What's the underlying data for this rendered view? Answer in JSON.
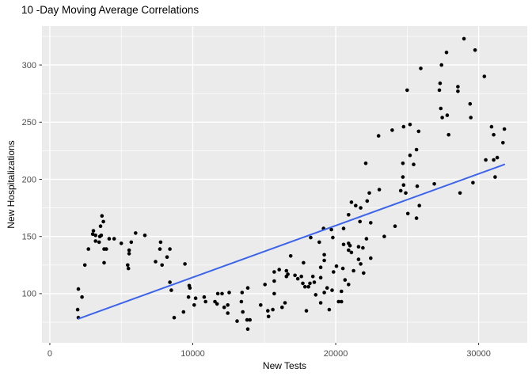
{
  "chart_data": {
    "type": "scatter",
    "title": "10 -Day Moving Average Correlations",
    "xlabel": "New Tests",
    "ylabel": "New Hospitalizations",
    "x_ticks": [
      0,
      10000,
      20000,
      30000
    ],
    "x_tick_labels": [
      "0",
      "10000",
      "20000",
      "30000"
    ],
    "y_ticks": [
      100,
      150,
      200,
      250,
      300
    ],
    "y_tick_labels": [
      "100",
      "150",
      "200",
      "250",
      "300"
    ],
    "x_minor": [
      5000,
      15000,
      25000
    ],
    "y_minor": [
      75,
      125,
      175,
      225,
      275,
      325
    ],
    "xlim": [
      -550,
      33400
    ],
    "ylim": [
      57,
      334
    ],
    "grid": "white major and minor gridlines on gray panel",
    "legend": "none",
    "colors": {
      "background": "#FFFFFF",
      "panel_bg": "#EBEBEB",
      "grid": "#FFFFFF",
      "point": "#000000",
      "trend": "#3C64EB",
      "tick_label": "#4D4D4D",
      "tick_mark": "#333333",
      "title": "#000000"
    },
    "trend_line": {
      "x1": 2000,
      "y1": 78,
      "x2": 31800,
      "y2": 213
    },
    "points": [
      [
        1950,
        86
      ],
      [
        2000,
        79
      ],
      [
        2000,
        104
      ],
      [
        2250,
        97
      ],
      [
        2450,
        125
      ],
      [
        2700,
        139
      ],
      [
        3000,
        152
      ],
      [
        3050,
        155
      ],
      [
        3200,
        151
      ],
      [
        3200,
        146
      ],
      [
        3450,
        145
      ],
      [
        3500,
        150
      ],
      [
        3550,
        159
      ],
      [
        3600,
        151
      ],
      [
        3650,
        168
      ],
      [
        3750,
        163
      ],
      [
        3800,
        139
      ],
      [
        3800,
        127
      ],
      [
        3950,
        139
      ],
      [
        4150,
        148
      ],
      [
        4500,
        148
      ],
      [
        5000,
        144
      ],
      [
        5450,
        125
      ],
      [
        5500,
        122
      ],
      [
        5550,
        138
      ],
      [
        5550,
        135
      ],
      [
        5700,
        145
      ],
      [
        6000,
        153
      ],
      [
        6650,
        151
      ],
      [
        7400,
        128
      ],
      [
        7700,
        139
      ],
      [
        7750,
        145
      ],
      [
        7850,
        125
      ],
      [
        8200,
        132
      ],
      [
        8400,
        139
      ],
      [
        8400,
        110
      ],
      [
        8500,
        103
      ],
      [
        8700,
        79
      ],
      [
        9350,
        84
      ],
      [
        9450,
        126
      ],
      [
        9700,
        97
      ],
      [
        9750,
        107
      ],
      [
        9800,
        105
      ],
      [
        10100,
        90
      ],
      [
        10200,
        96
      ],
      [
        10800,
        97
      ],
      [
        10900,
        93
      ],
      [
        11550,
        93
      ],
      [
        11700,
        91
      ],
      [
        11750,
        100
      ],
      [
        12050,
        100
      ],
      [
        12200,
        88
      ],
      [
        12450,
        90
      ],
      [
        12450,
        83
      ],
      [
        12550,
        101
      ],
      [
        13100,
        76
      ],
      [
        13400,
        93
      ],
      [
        13450,
        101
      ],
      [
        13500,
        84
      ],
      [
        13800,
        77
      ],
      [
        13850,
        105
      ],
      [
        13850,
        69
      ],
      [
        14000,
        77
      ],
      [
        14750,
        90
      ],
      [
        15050,
        108
      ],
      [
        15250,
        85
      ],
      [
        15300,
        80
      ],
      [
        15600,
        86
      ],
      [
        15700,
        111
      ],
      [
        15700,
        119
      ],
      [
        15700,
        100
      ],
      [
        16050,
        121
      ],
      [
        16250,
        88
      ],
      [
        16450,
        92
      ],
      [
        16550,
        115
      ],
      [
        16550,
        120
      ],
      [
        16650,
        117
      ],
      [
        16850,
        133
      ],
      [
        17150,
        116
      ],
      [
        17350,
        113
      ],
      [
        17600,
        115
      ],
      [
        17700,
        109
      ],
      [
        17750,
        127
      ],
      [
        17850,
        106
      ],
      [
        17950,
        85
      ],
      [
        18100,
        106
      ],
      [
        18200,
        109
      ],
      [
        18250,
        149
      ],
      [
        18400,
        115
      ],
      [
        18500,
        110
      ],
      [
        18600,
        99
      ],
      [
        18850,
        145
      ],
      [
        18950,
        123
      ],
      [
        18950,
        114
      ],
      [
        18950,
        92
      ],
      [
        19150,
        157
      ],
      [
        19200,
        134
      ],
      [
        19200,
        129
      ],
      [
        19200,
        101
      ],
      [
        19400,
        105
      ],
      [
        19550,
        86
      ],
      [
        19700,
        156
      ],
      [
        19750,
        103
      ],
      [
        19800,
        149
      ],
      [
        19850,
        119
      ],
      [
        20050,
        124
      ],
      [
        20200,
        93
      ],
      [
        20400,
        102
      ],
      [
        20400,
        93
      ],
      [
        20500,
        122
      ],
      [
        20550,
        157
      ],
      [
        20550,
        143
      ],
      [
        20650,
        112
      ],
      [
        20900,
        169
      ],
      [
        20900,
        144
      ],
      [
        20900,
        138
      ],
      [
        20900,
        108
      ],
      [
        21000,
        142
      ],
      [
        21100,
        180
      ],
      [
        21100,
        136
      ],
      [
        21250,
        120
      ],
      [
        21400,
        177
      ],
      [
        21600,
        141
      ],
      [
        21600,
        130
      ],
      [
        21700,
        163
      ],
      [
        21750,
        175
      ],
      [
        21750,
        126
      ],
      [
        21900,
        140
      ],
      [
        21950,
        118
      ],
      [
        22100,
        214
      ],
      [
        22150,
        148
      ],
      [
        22200,
        181
      ],
      [
        22350,
        188
      ],
      [
        22450,
        162
      ],
      [
        22450,
        131
      ],
      [
        23000,
        238
      ],
      [
        23050,
        191
      ],
      [
        23400,
        150
      ],
      [
        23950,
        243
      ],
      [
        24150,
        159
      ],
      [
        24550,
        190
      ],
      [
        24700,
        214
      ],
      [
        24700,
        202
      ],
      [
        24750,
        246
      ],
      [
        24750,
        195
      ],
      [
        24900,
        188
      ],
      [
        25000,
        278
      ],
      [
        25050,
        170
      ],
      [
        25200,
        248
      ],
      [
        25200,
        221
      ],
      [
        25450,
        213
      ],
      [
        25650,
        226
      ],
      [
        25650,
        166
      ],
      [
        25700,
        194
      ],
      [
        25800,
        242
      ],
      [
        25850,
        177
      ],
      [
        25950,
        297
      ],
      [
        26900,
        196
      ],
      [
        27250,
        278
      ],
      [
        27300,
        284
      ],
      [
        27350,
        262
      ],
      [
        27400,
        300
      ],
      [
        27450,
        254
      ],
      [
        27750,
        311
      ],
      [
        27800,
        256
      ],
      [
        27900,
        239
      ],
      [
        28550,
        281
      ],
      [
        28550,
        277
      ],
      [
        28700,
        188
      ],
      [
        28975,
        323
      ],
      [
        29400,
        266
      ],
      [
        29450,
        254
      ],
      [
        29600,
        197
      ],
      [
        29750,
        313
      ],
      [
        30400,
        290
      ],
      [
        30500,
        217
      ],
      [
        30900,
        246
      ],
      [
        31050,
        239
      ],
      [
        31050,
        217
      ],
      [
        31150,
        202
      ],
      [
        31300,
        219
      ],
      [
        31700,
        232
      ],
      [
        31800,
        244
      ]
    ]
  }
}
